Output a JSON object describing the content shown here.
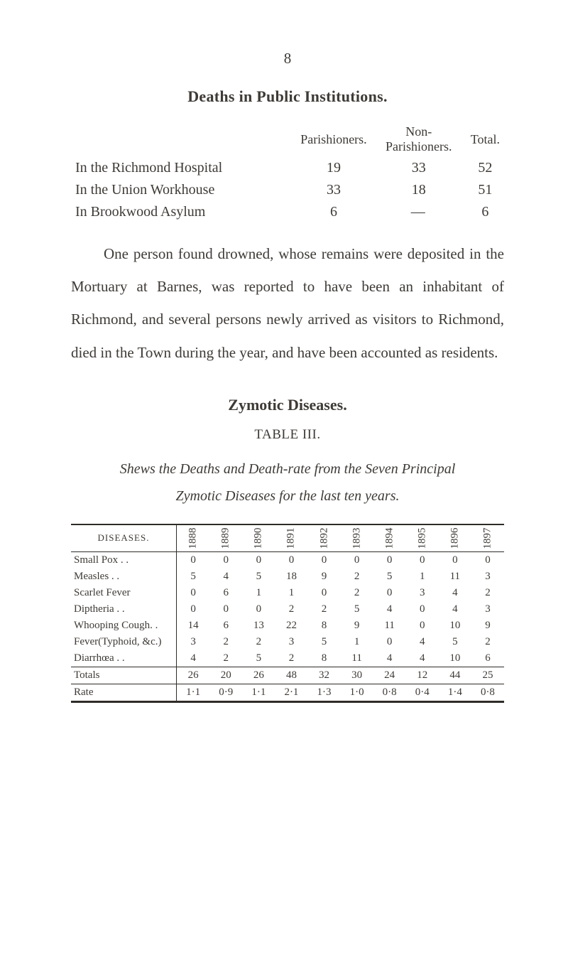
{
  "page_number": "8",
  "heading1": "Deaths in Public Institutions.",
  "table1": {
    "col_headers": [
      "Parishioners.",
      "Non-Parishioners.",
      "Total."
    ],
    "rows": [
      {
        "label": "In the Richmond Hospital",
        "v": [
          "19",
          "33",
          "52"
        ]
      },
      {
        "label": "In the Union Workhouse",
        "v": [
          "33",
          "18",
          "51"
        ]
      },
      {
        "label": "In Brookwood Asylum",
        "v": [
          "6",
          "—",
          "6"
        ]
      }
    ]
  },
  "paragraph": "One person found drowned, whose remains were deposited in the Mortuary at Barnes, was reported to have been an inhabitant of Richmond, and several persons newly arrived as visitors to Richmond, died in the Town during the year, and have been accounted as residents.",
  "heading2": "Zymotic Diseases.",
  "heading3": "TABLE III.",
  "subcaption_a": "Shews the Deaths and Death-rate from the Seven Principal",
  "subcaption_b": "Zymotic Diseases for the last ten years.",
  "table2": {
    "diseases_header": "DISEASES.",
    "years": [
      "1888",
      "1889",
      "1890",
      "1891",
      "1892",
      "1893",
      "1894",
      "1895",
      "1896",
      "1897"
    ],
    "rows": [
      {
        "label": "Small Pox . .",
        "v": [
          "0",
          "0",
          "0",
          "0",
          "0",
          "0",
          "0",
          "0",
          "0",
          "0"
        ]
      },
      {
        "label": "Measles   . .",
        "v": [
          "5",
          "4",
          "5",
          "18",
          "9",
          "2",
          "5",
          "1",
          "11",
          "3"
        ]
      },
      {
        "label": "Scarlet Fever",
        "v": [
          "0",
          "6",
          "1",
          "1",
          "0",
          "2",
          "0",
          "3",
          "4",
          "2"
        ]
      },
      {
        "label": "Diptheria  . .",
        "v": [
          "0",
          "0",
          "0",
          "2",
          "2",
          "5",
          "4",
          "0",
          "4",
          "3"
        ]
      },
      {
        "label": "Whooping Cough. .",
        "v": [
          "14",
          "6",
          "13",
          "22",
          "8",
          "9",
          "11",
          "0",
          "10",
          "9"
        ]
      },
      {
        "label": "Fever(Typhoid, &c.)",
        "v": [
          "3",
          "2",
          "2",
          "3",
          "5",
          "1",
          "0",
          "4",
          "5",
          "2"
        ]
      },
      {
        "label": "Diarrhœa  . .",
        "v": [
          "4",
          "2",
          "5",
          "2",
          "8",
          "11",
          "4",
          "4",
          "10",
          "6"
        ]
      }
    ],
    "totals": {
      "label": "Totals",
      "v": [
        "26",
        "20",
        "26",
        "48",
        "32",
        "30",
        "24",
        "12",
        "44",
        "25"
      ]
    },
    "rate": {
      "label": "Rate",
      "v": [
        "1·1",
        "0·9",
        "1·1",
        "2·1",
        "1·3",
        "1·0",
        "0·8",
        "0·4",
        "1·4",
        "0·8"
      ]
    }
  }
}
